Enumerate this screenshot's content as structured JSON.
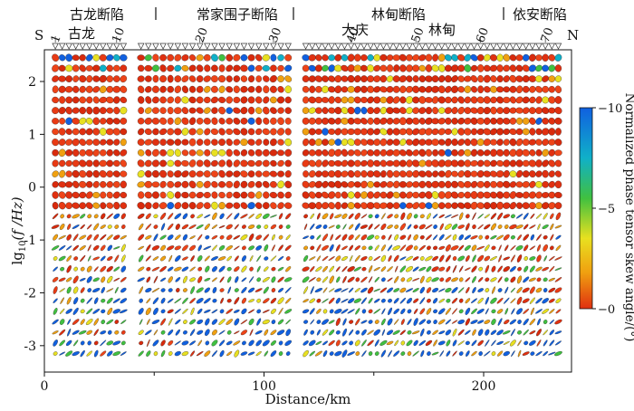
{
  "chart_data": {
    "type": "scatter",
    "title": "",
    "xlabel": "Distance/km",
    "ylabel_main": "lg",
    "ylabel_sub": "10",
    "ylabel_rest": "(f /Hz)",
    "xlim": [
      0,
      240
    ],
    "ylim": [
      -3.5,
      2.6
    ],
    "xticks": [
      0,
      100,
      200
    ],
    "yticks": [
      2,
      1,
      0,
      -1,
      -2,
      -3
    ],
    "direction_labels": {
      "south": "S",
      "north": "N"
    },
    "station_ticks": [
      1,
      10,
      20,
      30,
      40,
      50,
      60,
      70
    ],
    "station_count": 72,
    "region_labels": [
      {
        "text": "古龙断陷",
        "x_km": 20
      },
      {
        "text": "常家围子断陷",
        "x_km": 86
      },
      {
        "text": "林甸断陷",
        "x_km": 158
      },
      {
        "text": "依安断陷",
        "x_km": 222
      }
    ],
    "region_dividers_km": [
      51,
      113,
      208
    ],
    "town_labels": [
      {
        "text": "古龙",
        "x_km": 14
      },
      {
        "text": "大庆",
        "x_km": 142
      },
      {
        "text": "林甸",
        "x_km": 183
      }
    ],
    "colorbar": {
      "label": "Normalized phase tensor skew angle/(°)",
      "ticks": [
        10,
        5,
        0
      ],
      "colors": [
        "#1060e0",
        "#10b0c8",
        "#40c040",
        "#e8e020",
        "#f0a010",
        "#e03010"
      ]
    },
    "frequency_band_note": "Ellipse color indicates skew angle; upper band (lg f > -0.5) predominantly red (≈0°); lower band mixed with blue/green ellipses."
  }
}
